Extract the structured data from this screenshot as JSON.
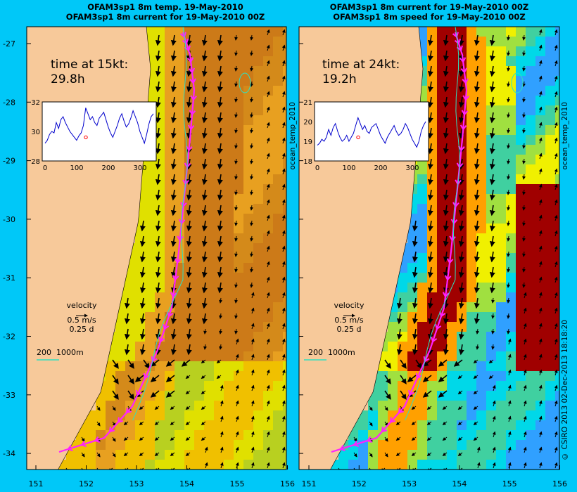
{
  "left_panel": {
    "title_line1": "OFAM3sp1 8m temp. 19-May-2010",
    "title_line2": "OFAM3sp1 8m current for 19-May-2010 00Z",
    "time_label": "time at 15kt:",
    "time_value": "29.8h",
    "inset_yticks": [
      "32",
      "30",
      "28"
    ],
    "inset_xticks": [
      "0",
      "100",
      "200",
      "300"
    ],
    "inset_series": [
      29.2,
      29.4,
      29.8,
      30.0,
      29.9,
      30.6,
      30.2,
      30.8,
      31.0,
      30.6,
      30.3,
      30.0,
      29.8,
      29.6,
      29.4,
      29.7,
      29.9,
      30.4,
      31.6,
      31.2,
      30.8,
      31.0,
      30.6,
      30.4,
      30.9,
      31.1,
      31.3,
      30.8,
      30.3,
      29.9,
      29.6,
      30.0,
      30.4,
      30.9,
      31.2,
      30.7,
      30.3,
      30.5,
      30.9,
      31.4,
      31.0,
      30.6,
      30.0,
      29.6,
      29.2,
      29.8,
      30.5,
      31.0,
      31.2
    ],
    "side_label": "ocean_temp_2010"
  },
  "right_panel": {
    "title_line1": "OFAM3sp1 8m current for 19-May-2010 00Z",
    "title_line2": "OFAM3sp1 8m speed for 19-May-2010 00Z",
    "time_label": "time at 24kt:",
    "time_value": "19.2h",
    "inset_yticks": [
      "21",
      "20",
      "19",
      "18"
    ],
    "inset_xticks": [
      "0",
      "100",
      "200",
      "300"
    ],
    "inset_series": [
      18.8,
      18.9,
      19.1,
      19.0,
      19.2,
      19.6,
      19.3,
      19.7,
      19.9,
      19.5,
      19.2,
      19.0,
      19.1,
      19.3,
      19.0,
      19.2,
      19.4,
      19.8,
      20.2,
      19.9,
      19.6,
      19.8,
      19.5,
      19.4,
      19.7,
      19.8,
      19.9,
      19.6,
      19.3,
      19.1,
      18.9,
      19.2,
      19.4,
      19.6,
      19.8,
      19.5,
      19.3,
      19.4,
      19.6,
      19.9,
      19.7,
      19.4,
      19.1,
      18.9,
      18.7,
      19.0,
      19.5,
      19.8,
      20.0
    ],
    "side_label": "ocean_temp_2010"
  },
  "legend": {
    "velocity_label": "velocity",
    "speed_label": "0.5 m/s",
    "duration_label": "0.25 d",
    "depth_labels": "200  1000m"
  },
  "axes": {
    "y_ticks": [
      "-27",
      "-28",
      "-29",
      "-30",
      "-31",
      "-32",
      "-33",
      "-34"
    ],
    "x_ticks": [
      "151",
      "152",
      "153",
      "154",
      "155",
      "156"
    ]
  },
  "copyright": "© CSIRO 2013   02-Dec-2013 18:18:20",
  "colors": {
    "background": "#00c8f8",
    "land": "#f7c99a",
    "route": "#ff22ff",
    "contour": "#30e0c0"
  }
}
